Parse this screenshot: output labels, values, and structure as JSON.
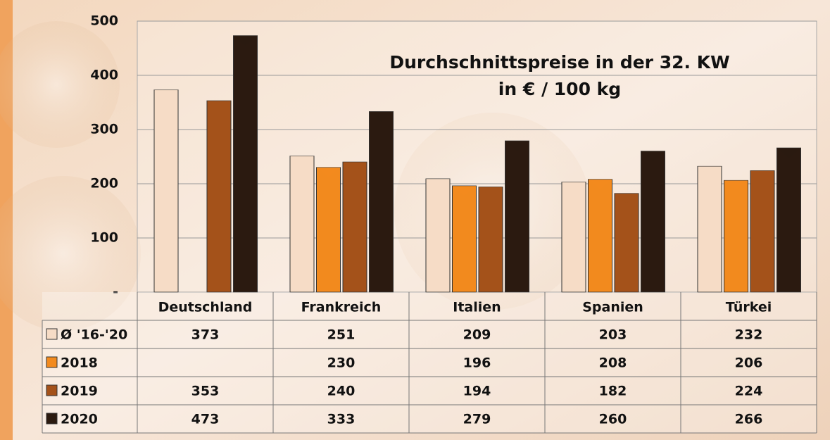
{
  "chart_data": {
    "type": "bar",
    "title": "Durchschnittspreise in der 32. KW",
    "subtitle": "in € / 100 kg",
    "categories": [
      "Deutschland",
      "Frankreich",
      "Italien",
      "Spanien",
      "Türkei"
    ],
    "series": [
      {
        "name": "Ø '16-'20",
        "color": "#f6dcc6",
        "values": [
          373,
          251,
          209,
          203,
          232
        ]
      },
      {
        "name": "2018",
        "color": "#f28a1e",
        "values": [
          null,
          230,
          196,
          208,
          206
        ]
      },
      {
        "name": "2019",
        "color": "#a4521a",
        "values": [
          353,
          240,
          194,
          182,
          224
        ]
      },
      {
        "name": "2020",
        "color": "#2b1a10",
        "values": [
          473,
          333,
          279,
          260,
          266
        ]
      }
    ],
    "ylim": [
      0,
      500
    ],
    "yticks": [
      {
        "value": 0,
        "label": "-"
      },
      100,
      200,
      300,
      400,
      500
    ],
    "grid": true
  }
}
